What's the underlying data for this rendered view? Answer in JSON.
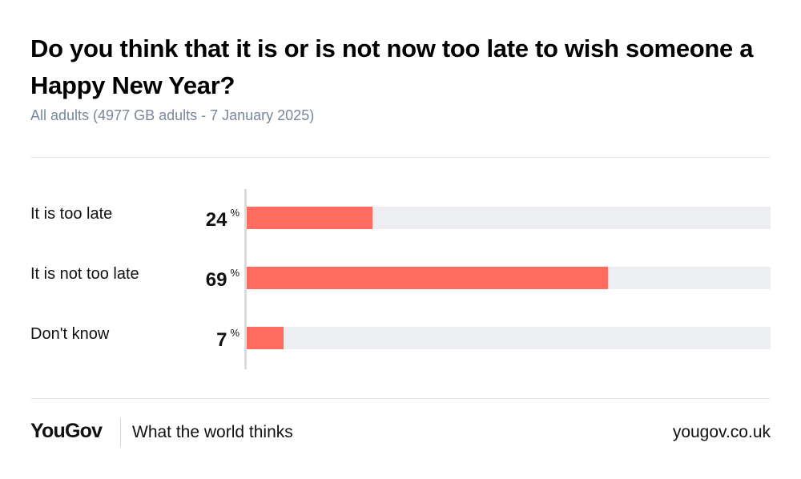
{
  "header": {
    "title": "Do you think that it is or is not now too late to wish someone a Happy New Year?",
    "subtitle": "All adults (4977 GB adults - 7 January 2025)"
  },
  "chart_data": {
    "type": "bar",
    "orientation": "horizontal",
    "title": "Do you think that it is or is not now too late to wish someone a Happy New Year?",
    "subtitle": "All adults (4977 GB adults - 7 January 2025)",
    "categories": [
      "It is too late",
      "It is not too late",
      "Don't know"
    ],
    "values": [
      24,
      69,
      7
    ],
    "unit": "%",
    "xlim": [
      0,
      100
    ],
    "grid": false,
    "legend": "none",
    "colors": {
      "bar": "#ff6b5e",
      "track": "#eceef2"
    }
  },
  "footer": {
    "brand": "YouGov",
    "tagline": "What the world thinks",
    "url": "yougov.co.uk"
  }
}
